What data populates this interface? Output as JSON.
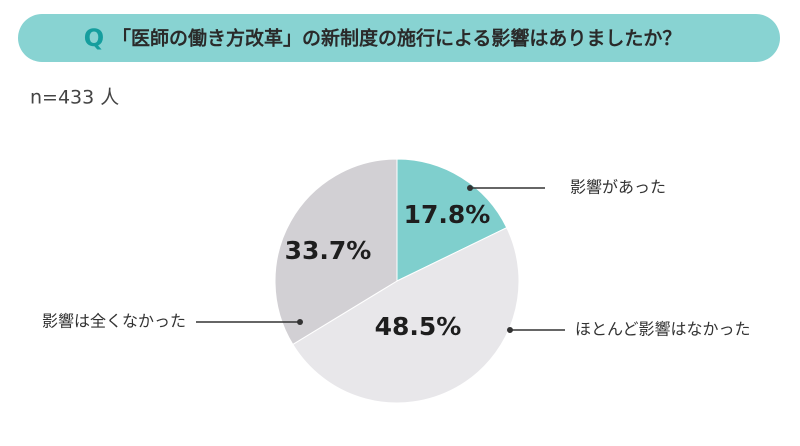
{
  "chart_data": {
    "type": "pie",
    "question_marker": "Q",
    "title": "「医師の働き方改革」の新制度の施行による影響はありましたか？",
    "subtitle": "n=433 人",
    "categories": [
      "影響があった",
      "ほとんど影響はなかった",
      "影響は全くなかった"
    ],
    "values": [
      17.8,
      48.5,
      33.7
    ],
    "value_labels": [
      "17.8%",
      "48.5%",
      "33.7%"
    ],
    "colors": [
      "#7fcfcd",
      "#e8e7ea",
      "#d2d0d4"
    ]
  }
}
